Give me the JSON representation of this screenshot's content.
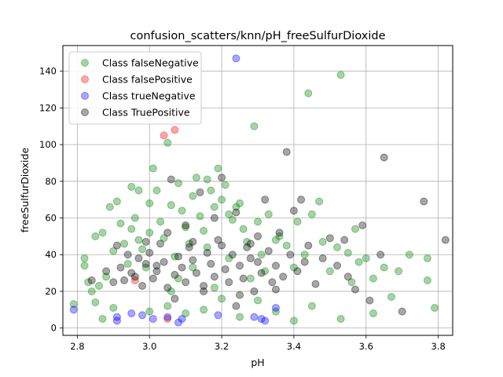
{
  "chart_data": {
    "type": "scatter",
    "title": "confusion_scatters/knn/pH_freeSulfurDioxide",
    "xlabel": "pH",
    "ylabel": "freeSulfurDioxide",
    "xlim": [
      2.76,
      3.84
    ],
    "ylim": [
      -4,
      154
    ],
    "xticks": [
      "2.8",
      "3.0",
      "3.2",
      "3.4",
      "3.6",
      "3.8"
    ],
    "yticks": [
      "0",
      "20",
      "40",
      "60",
      "80",
      "100",
      "120",
      "140"
    ],
    "grid": true,
    "legend_position": "upper left",
    "marker_alpha": 0.35,
    "series": [
      {
        "name": "Class falseNegative",
        "color": "#008000",
        "points": [
          [
            2.79,
            13
          ],
          [
            2.82,
            38
          ],
          [
            2.82,
            34
          ],
          [
            2.83,
            25
          ],
          [
            2.84,
            20
          ],
          [
            2.85,
            14
          ],
          [
            2.85,
            50
          ],
          [
            2.86,
            23
          ],
          [
            2.87,
            52
          ],
          [
            2.87,
            5
          ],
          [
            2.88,
            28
          ],
          [
            2.89,
            66
          ],
          [
            2.9,
            42
          ],
          [
            2.9,
            11
          ],
          [
            2.91,
            69
          ],
          [
            2.92,
            57
          ],
          [
            2.93,
            46
          ],
          [
            2.94,
            35
          ],
          [
            2.95,
            77
          ],
          [
            2.95,
            54
          ],
          [
            2.96,
            60
          ],
          [
            2.97,
            75
          ],
          [
            2.97,
            48
          ],
          [
            2.98,
            43
          ],
          [
            2.99,
            33
          ],
          [
            3.0,
            68
          ],
          [
            3.0,
            52
          ],
          [
            3.01,
            87
          ],
          [
            3.02,
            75
          ],
          [
            3.03,
            58
          ],
          [
            3.04,
            49
          ],
          [
            3.05,
            101
          ],
          [
            3.06,
            67
          ],
          [
            3.07,
            39
          ],
          [
            3.08,
            79
          ],
          [
            3.09,
            64
          ],
          [
            3.1,
            55
          ],
          [
            3.11,
            46
          ],
          [
            3.12,
            72
          ],
          [
            3.13,
            82
          ],
          [
            3.14,
            61
          ],
          [
            3.15,
            53
          ],
          [
            3.16,
            81
          ],
          [
            3.17,
            75
          ],
          [
            3.18,
            66
          ],
          [
            3.19,
            87
          ],
          [
            3.2,
            70
          ],
          [
            3.21,
            78
          ],
          [
            3.22,
            62
          ],
          [
            3.23,
            59
          ],
          [
            3.24,
            66
          ],
          [
            3.25,
            68
          ],
          [
            3.26,
            54
          ],
          [
            3.27,
            47
          ],
          [
            3.29,
            110
          ],
          [
            3.3,
            58
          ],
          [
            3.31,
            40
          ],
          [
            3.33,
            62
          ],
          [
            3.35,
            48
          ],
          [
            3.36,
            50
          ],
          [
            3.38,
            45
          ],
          [
            3.4,
            33
          ],
          [
            3.41,
            58
          ],
          [
            3.43,
            40
          ],
          [
            3.44,
            128
          ],
          [
            3.45,
            62
          ],
          [
            3.47,
            69
          ],
          [
            3.48,
            47
          ],
          [
            3.5,
            31
          ],
          [
            3.52,
            44
          ],
          [
            3.53,
            138
          ],
          [
            3.53,
            5
          ],
          [
            3.55,
            41
          ],
          [
            3.56,
            25
          ],
          [
            3.57,
            54
          ],
          [
            3.58,
            36
          ],
          [
            3.6,
            38
          ],
          [
            3.62,
            27
          ],
          [
            3.62,
            8
          ],
          [
            3.65,
            33
          ],
          [
            3.67,
            17
          ],
          [
            3.69,
            31
          ],
          [
            3.72,
            40
          ],
          [
            3.77,
            38
          ],
          [
            3.77,
            26
          ],
          [
            3.79,
            11
          ],
          [
            3.0,
            9
          ],
          [
            3.05,
            12
          ],
          [
            3.1,
            8
          ],
          [
            3.15,
            10
          ],
          [
            3.2,
            16
          ],
          [
            3.25,
            6
          ],
          [
            3.3,
            15
          ],
          [
            3.35,
            9
          ],
          [
            3.4,
            4
          ],
          [
            3.45,
            12
          ],
          [
            3.08,
            27
          ],
          [
            3.12,
            33
          ],
          [
            3.18,
            22
          ],
          [
            3.22,
            38
          ],
          [
            3.28,
            27
          ],
          [
            3.32,
            31
          ],
          [
            3.16,
            44
          ],
          [
            3.06,
            20
          ]
        ]
      },
      {
        "name": "Class falsePositive",
        "color": "#ff0000",
        "points": [
          [
            3.04,
            105
          ],
          [
            3.07,
            108
          ],
          [
            2.96,
            26
          ],
          [
            3.05,
            5
          ]
        ]
      },
      {
        "name": "Class trueNegative",
        "color": "#0000ff",
        "points": [
          [
            2.79,
            10
          ],
          [
            2.91,
            6
          ],
          [
            2.91,
            4
          ],
          [
            2.95,
            8
          ],
          [
            2.98,
            7
          ],
          [
            3.01,
            5
          ],
          [
            3.05,
            6
          ],
          [
            3.08,
            3
          ],
          [
            3.09,
            5
          ],
          [
            3.19,
            7
          ],
          [
            3.24,
            147
          ],
          [
            3.29,
            6
          ],
          [
            3.31,
            5
          ],
          [
            3.32,
            4
          ],
          [
            3.35,
            11
          ]
        ]
      },
      {
        "name": "Class TruePositive",
        "color": "#000000",
        "points": [
          [
            2.84,
            26
          ],
          [
            2.88,
            31
          ],
          [
            2.91,
            45
          ],
          [
            2.92,
            33
          ],
          [
            2.93,
            26
          ],
          [
            2.94,
            40
          ],
          [
            2.95,
            30
          ],
          [
            2.96,
            28
          ],
          [
            2.97,
            38
          ],
          [
            2.98,
            23
          ],
          [
            2.99,
            35
          ],
          [
            3.0,
            41
          ],
          [
            3.01,
            27
          ],
          [
            3.02,
            31
          ],
          [
            3.03,
            46
          ],
          [
            3.04,
            36
          ],
          [
            3.05,
            22
          ],
          [
            3.06,
            81
          ],
          [
            3.07,
            29
          ],
          [
            3.08,
            39
          ],
          [
            3.09,
            33
          ],
          [
            3.1,
            25
          ],
          [
            3.11,
            44
          ],
          [
            3.12,
            37
          ],
          [
            3.13,
            30
          ],
          [
            3.14,
            74
          ],
          [
            3.15,
            23
          ],
          [
            3.16,
            41
          ],
          [
            3.17,
            35
          ],
          [
            3.18,
            28
          ],
          [
            3.19,
            48
          ],
          [
            3.2,
            82
          ],
          [
            3.21,
            32
          ],
          [
            3.22,
            25
          ],
          [
            3.23,
            40
          ],
          [
            3.24,
            63
          ],
          [
            3.25,
            34
          ],
          [
            3.26,
            27
          ],
          [
            3.27,
            44
          ],
          [
            3.28,
            38
          ],
          [
            3.29,
            20
          ],
          [
            3.3,
            36
          ],
          [
            3.31,
            30
          ],
          [
            3.32,
            70
          ],
          [
            3.33,
            42
          ],
          [
            3.34,
            25
          ],
          [
            3.35,
            34
          ],
          [
            3.36,
            52
          ],
          [
            3.37,
            28
          ],
          [
            3.38,
            96
          ],
          [
            3.39,
            40
          ],
          [
            3.4,
            64
          ],
          [
            3.41,
            31
          ],
          [
            3.42,
            70
          ],
          [
            3.43,
            36
          ],
          [
            3.44,
            45
          ],
          [
            3.46,
            24
          ],
          [
            3.48,
            38
          ],
          [
            3.5,
            49
          ],
          [
            3.52,
            34
          ],
          [
            3.54,
            48
          ],
          [
            3.55,
            28
          ],
          [
            3.57,
            21
          ],
          [
            3.59,
            56
          ],
          [
            3.61,
            15
          ],
          [
            3.64,
            40
          ],
          [
            3.65,
            93
          ],
          [
            3.7,
            9
          ],
          [
            3.76,
            69
          ],
          [
            3.82,
            48
          ],
          [
            2.9,
            25
          ],
          [
            2.99,
            47
          ],
          [
            3.05,
            52
          ],
          [
            3.1,
            56
          ],
          [
            3.15,
            20
          ],
          [
            3.2,
            45
          ],
          [
            3.25,
            18
          ],
          [
            3.3,
            50
          ],
          [
            3.35,
            21
          ],
          [
            3.24,
            12
          ],
          [
            3.18,
            60
          ],
          [
            3.12,
            47
          ],
          [
            3.07,
            16
          ],
          [
            3.02,
            34
          ],
          [
            3.28,
            46
          ]
        ]
      }
    ]
  }
}
